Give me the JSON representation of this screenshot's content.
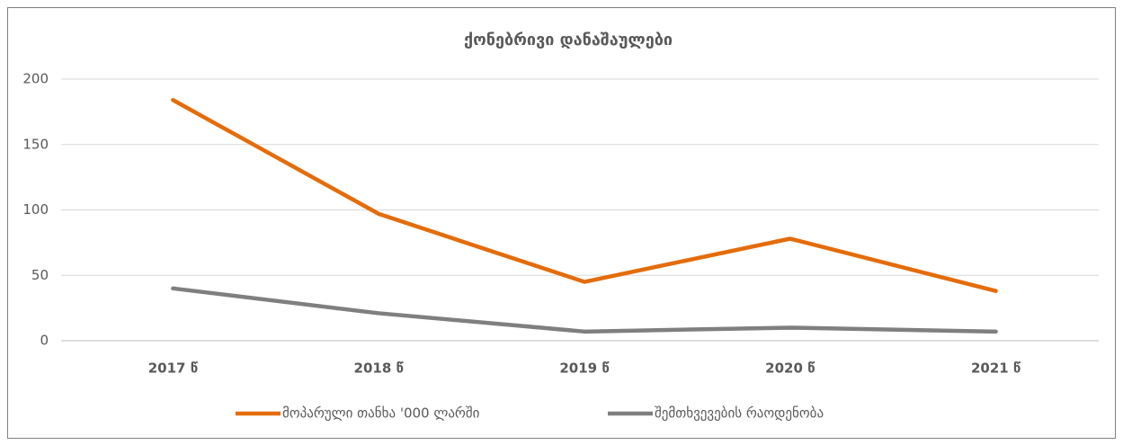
{
  "chart_data": {
    "type": "line",
    "title": "ქონებრივი დანაშაულები",
    "categories": [
      "2017 წ",
      "2018 წ",
      "2019 წ",
      "2020 წ",
      "2021 წ"
    ],
    "series": [
      {
        "name": "მოპარული თანხა '000 ლარში",
        "color": "#e46c0a",
        "values": [
          184,
          97,
          45,
          78,
          38
        ]
      },
      {
        "name": "შემთხვევების რაოდენობა",
        "color": "#7f7f7f",
        "values": [
          40,
          21,
          7,
          10,
          7
        ]
      }
    ],
    "ylim": [
      0,
      200
    ],
    "yticks": [
      0,
      50,
      100,
      150,
      200
    ],
    "grid": true,
    "legend": "bottom"
  }
}
